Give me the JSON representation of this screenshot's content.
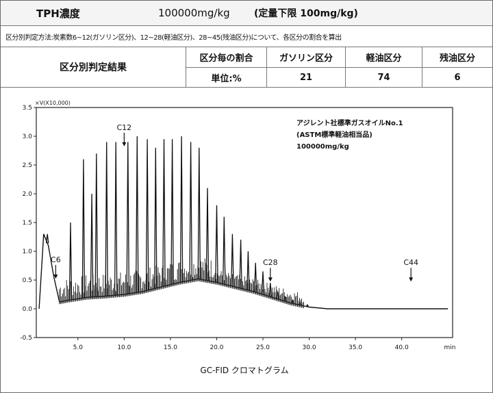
{
  "report": {
    "tph_label": "TPH濃度",
    "tph_value": "100000mg/kg",
    "quant_limit": "(定量下限 100mg/kg)",
    "method_note": "区分別判定方法:炭素数6~12(ガソリン区分)、12~28(軽油区分)、28~45(残油区分)について、各区分の割合を算出",
    "result_label": "区分別判定結果",
    "ratio_header": "区分毎の割合",
    "unit_label": "単位:%",
    "columns": [
      {
        "label": "ガソリン区分",
        "value": "21"
      },
      {
        "label": "軽油区分",
        "value": "74"
      },
      {
        "label": "残油区分",
        "value": "6"
      }
    ]
  },
  "chart_data": {
    "type": "line",
    "title": "GC-FID クロマトグラム",
    "ylabel": "×V(X10,000)",
    "xlabel": "min",
    "xlim": [
      0.5,
      45.5
    ],
    "ylim": [
      -0.5,
      3.5
    ],
    "x_ticks": [
      "5.0",
      "10.0",
      "15.0",
      "20.0",
      "25.0",
      "30.0",
      "35.0",
      "40.0"
    ],
    "x_tick_values": [
      5,
      10,
      15,
      20,
      25,
      30,
      35,
      40
    ],
    "y_ticks": [
      "-0.5",
      "0.0",
      "0.5",
      "1.0",
      "1.5",
      "2.0",
      "2.5",
      "3.0",
      "3.5"
    ],
    "y_tick_values": [
      -0.5,
      0,
      0.5,
      1,
      1.5,
      2,
      2.5,
      3,
      3.5
    ],
    "x_end_label": "min",
    "legend": [
      "アジレント社標準ガスオイルNo.1",
      "(ASTM標準軽油相当品)",
      "100000mg/kg"
    ],
    "markers": [
      {
        "label": "C6",
        "x": 2.6,
        "y": 0.5
      },
      {
        "label": "C12",
        "x": 10.0,
        "y": 2.8
      },
      {
        "label": "C28",
        "x": 25.8,
        "y": 0.45
      },
      {
        "label": "C44",
        "x": 41.0,
        "y": 0.45
      }
    ],
    "peaks": [
      {
        "x": 1.7,
        "y": 1.3
      },
      {
        "x": 4.2,
        "y": 1.5
      },
      {
        "x": 5.6,
        "y": 2.6
      },
      {
        "x": 6.5,
        "y": 2.0
      },
      {
        "x": 7.0,
        "y": 2.7
      },
      {
        "x": 8.1,
        "y": 2.9
      },
      {
        "x": 9.1,
        "y": 2.9
      },
      {
        "x": 10.4,
        "y": 2.9
      },
      {
        "x": 11.4,
        "y": 3.0
      },
      {
        "x": 12.5,
        "y": 2.95
      },
      {
        "x": 13.4,
        "y": 2.8
      },
      {
        "x": 14.3,
        "y": 2.95
      },
      {
        "x": 15.2,
        "y": 2.95
      },
      {
        "x": 16.2,
        "y": 3.0
      },
      {
        "x": 17.2,
        "y": 2.9
      },
      {
        "x": 18.1,
        "y": 2.8
      },
      {
        "x": 19.0,
        "y": 2.1
      },
      {
        "x": 20.0,
        "y": 1.8
      },
      {
        "x": 20.8,
        "y": 1.6
      },
      {
        "x": 21.7,
        "y": 1.3
      },
      {
        "x": 22.6,
        "y": 1.2
      },
      {
        "x": 23.4,
        "y": 1.0
      },
      {
        "x": 24.2,
        "y": 0.8
      },
      {
        "x": 25.0,
        "y": 0.65
      },
      {
        "x": 25.8,
        "y": 0.45
      },
      {
        "x": 26.6,
        "y": 0.3
      },
      {
        "x": 27.4,
        "y": 0.22
      },
      {
        "x": 28.2,
        "y": 0.15
      },
      {
        "x": 29.0,
        "y": 0.1
      },
      {
        "x": 29.8,
        "y": 0.07
      }
    ],
    "baseline": [
      {
        "x": 0.8,
        "y": 0.0
      },
      {
        "x": 1.3,
        "y": 1.3
      },
      {
        "x": 1.8,
        "y": 1.1
      },
      {
        "x": 2.4,
        "y": 0.55
      },
      {
        "x": 3.0,
        "y": 0.12
      },
      {
        "x": 4.0,
        "y": 0.15
      },
      {
        "x": 6.0,
        "y": 0.2
      },
      {
        "x": 8.0,
        "y": 0.22
      },
      {
        "x": 10.0,
        "y": 0.25
      },
      {
        "x": 12.0,
        "y": 0.3
      },
      {
        "x": 14.0,
        "y": 0.38
      },
      {
        "x": 16.0,
        "y": 0.46
      },
      {
        "x": 18.0,
        "y": 0.52
      },
      {
        "x": 20.0,
        "y": 0.46
      },
      {
        "x": 22.0,
        "y": 0.38
      },
      {
        "x": 24.0,
        "y": 0.3
      },
      {
        "x": 26.0,
        "y": 0.2
      },
      {
        "x": 28.0,
        "y": 0.1
      },
      {
        "x": 30.0,
        "y": 0.03
      },
      {
        "x": 32.0,
        "y": 0.0
      },
      {
        "x": 45.0,
        "y": 0.0
      }
    ]
  }
}
